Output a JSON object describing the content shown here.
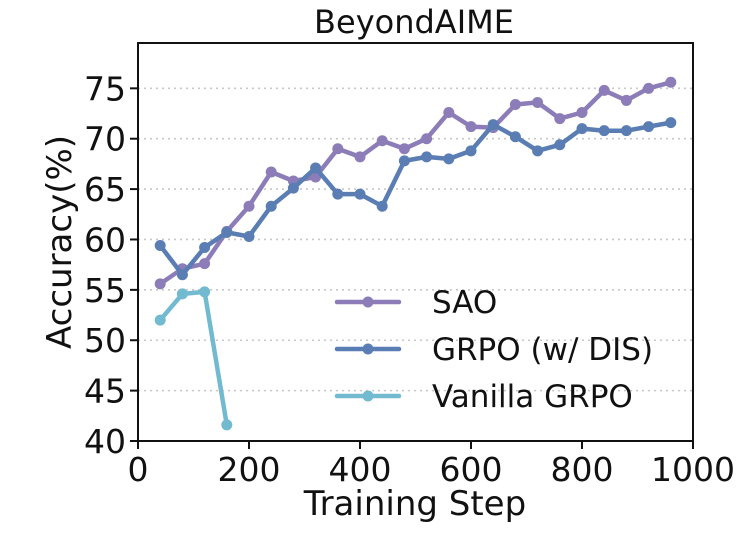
{
  "chart_data": {
    "type": "line",
    "title": "BeyondAIME",
    "xlabel": "Training Step",
    "ylabel": "Accuracy(%)",
    "xlim": [
      0,
      1000
    ],
    "ylim": [
      40,
      79.5
    ],
    "xticks": [
      0,
      200,
      400,
      600,
      800,
      1000
    ],
    "yticks": [
      40,
      45,
      50,
      55,
      60,
      65,
      70,
      75
    ],
    "grid": "horizontal dotted",
    "legend_position": "lower-right",
    "series": [
      {
        "name": "SAO",
        "color": "#8C7DB8",
        "x": [
          40,
          80,
          120,
          160,
          200,
          240,
          280,
          320,
          360,
          400,
          440,
          480,
          520,
          560,
          600,
          640,
          680,
          720,
          760,
          800,
          840,
          880,
          920,
          960
        ],
        "y": [
          55.6,
          57.1,
          57.6,
          60.8,
          63.3,
          66.7,
          65.8,
          66.2,
          69.0,
          68.2,
          69.8,
          69.0,
          70.0,
          72.6,
          71.2,
          71.1,
          73.4,
          73.6,
          72.0,
          72.6,
          74.8,
          73.8,
          75.0,
          75.6
        ]
      },
      {
        "name": "GRPO (w/ DIS)",
        "color": "#5A7DB4",
        "x": [
          40,
          80,
          120,
          160,
          200,
          240,
          280,
          320,
          360,
          400,
          440,
          480,
          520,
          560,
          600,
          640,
          680,
          720,
          760,
          800,
          840,
          880,
          920,
          960
        ],
        "y": [
          59.4,
          56.5,
          59.2,
          60.7,
          60.3,
          63.3,
          65.1,
          67.1,
          64.5,
          64.5,
          63.3,
          67.8,
          68.2,
          68.0,
          68.8,
          71.4,
          70.2,
          68.8,
          69.4,
          71.0,
          70.8,
          70.8,
          71.2,
          71.6
        ]
      },
      {
        "name": "Vanilla GRPO",
        "color": "#72BAD0",
        "x": [
          40,
          80,
          120,
          160
        ],
        "y": [
          52.0,
          54.6,
          54.8,
          41.6
        ]
      }
    ]
  }
}
